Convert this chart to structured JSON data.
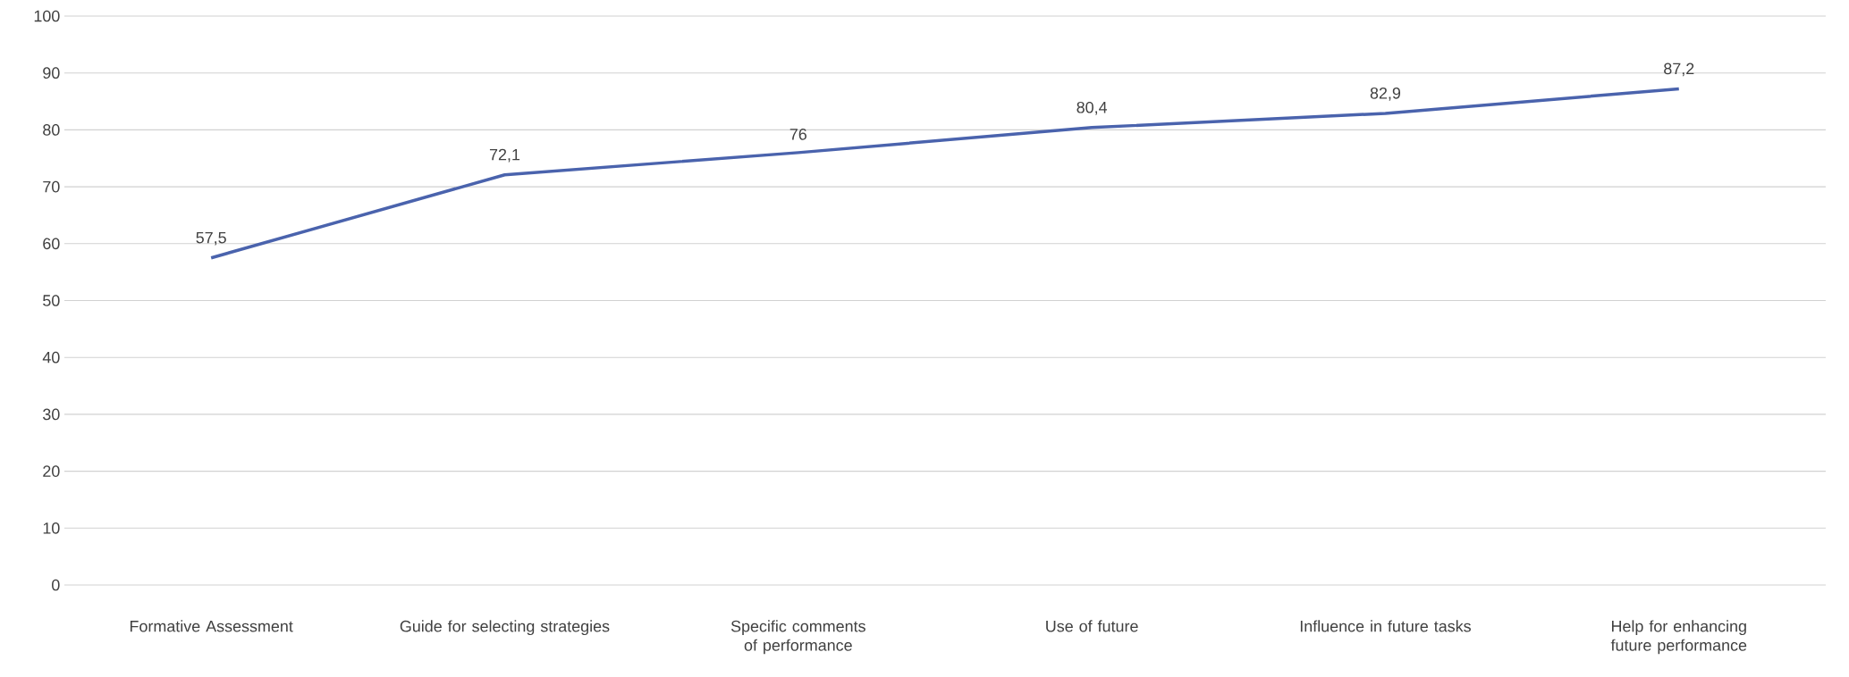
{
  "chart_data": {
    "type": "line",
    "categories": [
      "Formative Assessment",
      "Guide for selecting strategies",
      "Specific comments of performance",
      "Use of future",
      "Influence in future tasks",
      "Help for enhancing future performance"
    ],
    "series": [
      {
        "color": "#4a63ad",
        "values": [
          57.5,
          72.1,
          76,
          80.4,
          82.9,
          87.2
        ],
        "value_labels": [
          "57,5",
          "72,1",
          "76",
          "80,4",
          "82,9",
          "87,2"
        ]
      }
    ],
    "ylim": [
      0,
      100
    ],
    "yticks": [
      0,
      10,
      20,
      30,
      40,
      50,
      60,
      70,
      80,
      90,
      100
    ],
    "grid": "y",
    "marker": "none",
    "line_style": "solid"
  }
}
